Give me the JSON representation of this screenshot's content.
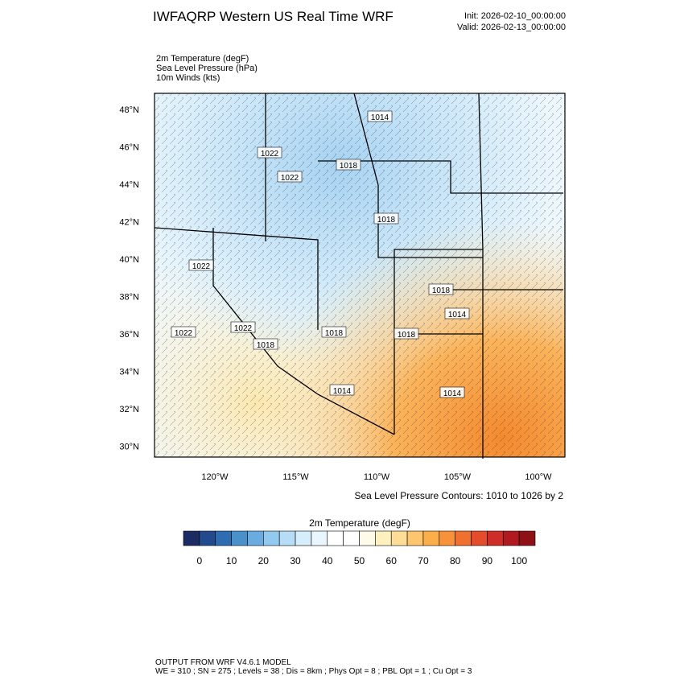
{
  "header": {
    "title": "IWFAQRP Western US Real Time WRF",
    "init": "Init: 2026-02-10_00:00:00",
    "valid": "Valid: 2026-02-13_00:00:00"
  },
  "fields": [
    "2m Temperature   (degF)",
    "Sea Level Pressure   (hPa)",
    "10m Winds   (kts)"
  ],
  "map": {
    "lat_labels": [
      "48°N",
      "46°N",
      "44°N",
      "42°N",
      "40°N",
      "38°N",
      "36°N",
      "34°N",
      "32°N",
      "30°N"
    ],
    "lon_labels": [
      "120°W",
      "115°W",
      "110°W",
      "105°W",
      "100°W"
    ],
    "contour_labels": [
      1014,
      1022,
      1018,
      1022,
      1018,
      1022,
      1018,
      1014,
      1022,
      1022,
      1018,
      1018,
      1018,
      1014,
      1014
    ],
    "contour_note": "Sea Level Pressure Contours: 1010 to 1026 by 2"
  },
  "colorbar": {
    "title": "2m Temperature  (degF)",
    "ticks": [
      0,
      10,
      20,
      30,
      40,
      50,
      60,
      70,
      80,
      90,
      100
    ],
    "colors": [
      "#1b2c62",
      "#224b8d",
      "#2f6db3",
      "#4a91cc",
      "#6aacdf",
      "#92c9ee",
      "#b6dcf6",
      "#d6eefc",
      "#eaf6fe",
      "#ffffff",
      "#ffffff",
      "#fffbea",
      "#fff0c0",
      "#fedd96",
      "#fdc66e",
      "#fbae4a",
      "#f7913a",
      "#f07030",
      "#e44d2b",
      "#cf2d28",
      "#b0191f",
      "#8d1117"
    ]
  },
  "footer": {
    "line1": "OUTPUT FROM WRF V4.6.1 MODEL",
    "line2": "WE = 310 ; SN = 275 ; Levels = 38 ; Dis = 8km ; Phys Opt = 8 ; PBL Opt = 1 ; Cu Opt = 3"
  }
}
